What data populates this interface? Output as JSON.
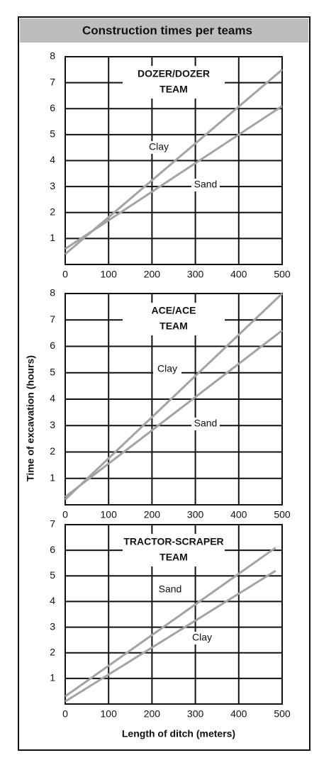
{
  "title": "Construction times per teams",
  "y_label": "Time of excavation (hours)",
  "x_label": "Length of ditch (meters)",
  "chart_data": [
    {
      "type": "line",
      "title": [
        "DOZER/DOZER",
        "TEAM"
      ],
      "xlim": [
        0,
        500
      ],
      "xticks": [
        0,
        100,
        200,
        300,
        400,
        500
      ],
      "ylim": [
        0,
        8
      ],
      "yticks": [
        1,
        2,
        3,
        4,
        5,
        6,
        7,
        8
      ],
      "grid": true,
      "series": [
        {
          "name": "Clay",
          "color": "#a3a3a3",
          "x": [
            0,
            500
          ],
          "values": [
            0.4,
            7.5
          ]
        },
        {
          "name": "Sand",
          "color": "#a3a3a3",
          "x": [
            0,
            500
          ],
          "values": [
            0.6,
            6.1
          ]
        }
      ]
    },
    {
      "type": "line",
      "title": [
        "ACE/ACE",
        "TEAM"
      ],
      "xlim": [
        0,
        500
      ],
      "xticks": [
        0,
        100,
        200,
        300,
        400,
        500
      ],
      "ylim": [
        0,
        8
      ],
      "yticks": [
        1,
        2,
        3,
        4,
        5,
        6,
        7,
        8
      ],
      "grid": true,
      "series": [
        {
          "name": "Clay",
          "color": "#a3a3a3",
          "x": [
            0,
            500
          ],
          "values": [
            0.2,
            8.0
          ]
        },
        {
          "name": "Sand",
          "color": "#a3a3a3",
          "x": [
            0,
            500
          ],
          "values": [
            0.3,
            6.6
          ]
        }
      ]
    },
    {
      "type": "line",
      "title": [
        "TRACTOR-SCRAPER",
        "TEAM"
      ],
      "xlim": [
        0,
        500
      ],
      "xticks": [
        0,
        100,
        200,
        300,
        400,
        500
      ],
      "ylim": [
        0,
        7
      ],
      "yticks": [
        1,
        2,
        3,
        4,
        5,
        6,
        7
      ],
      "grid": true,
      "series": [
        {
          "name": "Sand",
          "color": "#a3a3a3",
          "x": [
            0,
            485
          ],
          "values": [
            0.3,
            6.1
          ]
        },
        {
          "name": "Clay",
          "color": "#a3a3a3",
          "x": [
            0,
            485
          ],
          "values": [
            0.1,
            5.2
          ]
        }
      ]
    }
  ]
}
